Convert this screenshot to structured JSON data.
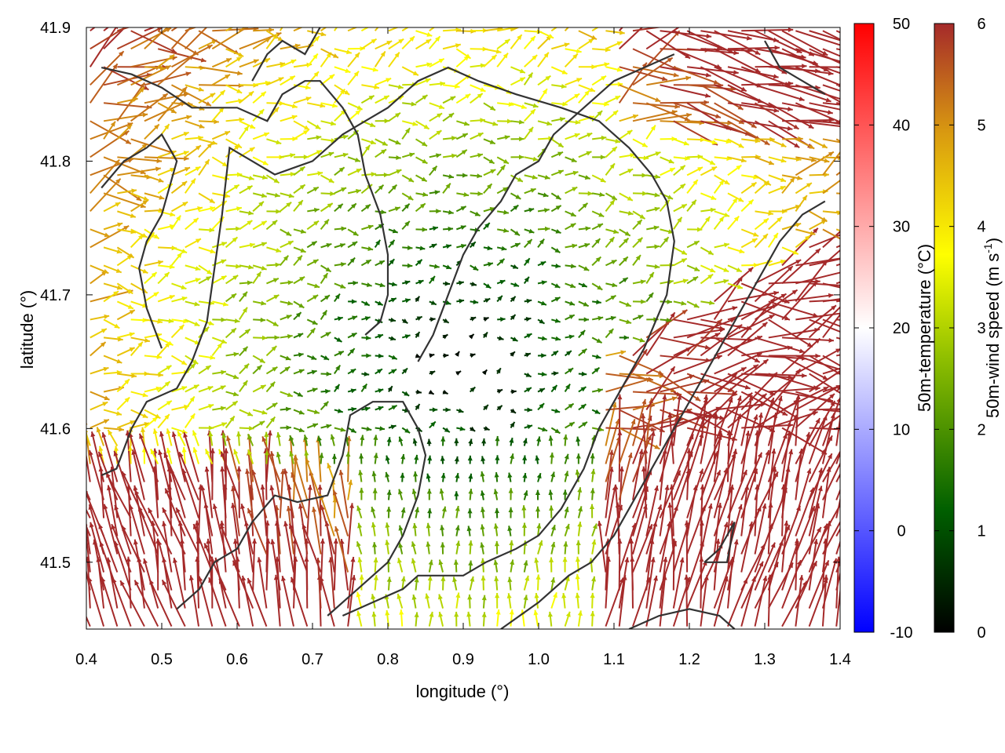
{
  "chart_data": {
    "type": "vector-field",
    "xlabel": "longitude (°)",
    "ylabel": "latitude (°)",
    "xlim": [
      0.4,
      1.4
    ],
    "ylim": [
      41.45,
      41.9
    ],
    "x_ticks": [
      "0.4",
      "0.5",
      "0.6",
      "0.7",
      "0.8",
      "0.9",
      "1.0",
      "1.1",
      "1.2",
      "1.3",
      "1.4"
    ],
    "y_ticks": [
      "41.5",
      "41.6",
      "41.7",
      "41.8",
      "41.9"
    ],
    "grid": false,
    "colorbars": [
      {
        "label": "50m-temperature (°C)",
        "range": [
          -10,
          50
        ],
        "ticks": [
          "-10",
          "0",
          "10",
          "20",
          "30",
          "40",
          "50"
        ],
        "colors": [
          "#0000ff",
          "#ffffff",
          "#ff0000"
        ]
      },
      {
        "label_main": "50m-wind speed (m s",
        "label_sup": "-1",
        "label_end": ")",
        "range": [
          0,
          6
        ],
        "ticks": [
          "0",
          "1",
          "2",
          "3",
          "4",
          "5",
          "6"
        ],
        "colors": [
          "#000000",
          "#005f00",
          "#8fbf00",
          "#ffff00",
          "#d99a10",
          "#a52a2a"
        ]
      }
    ],
    "vector_field": {
      "description": "wind arrows colored by 50m-wind speed",
      "low_speed_region_center": [
        0.9,
        41.65
      ],
      "high_speed_regions": [
        {
          "center": [
            1.3,
            41.55
          ],
          "speed": 6
        },
        {
          "center": [
            0.6,
            41.5
          ],
          "speed": 6
        }
      ]
    },
    "contours": [
      [
        [
          0.42,
          41.565
        ],
        [
          0.44,
          41.57
        ],
        [
          0.46,
          41.6
        ],
        [
          0.48,
          41.62
        ],
        [
          0.52,
          41.63
        ],
        [
          0.54,
          41.65
        ],
        [
          0.56,
          41.68
        ],
        [
          0.57,
          41.72
        ],
        [
          0.58,
          41.76
        ],
        [
          0.59,
          41.81
        ],
        [
          0.62,
          41.8
        ],
        [
          0.65,
          41.79
        ],
        [
          0.7,
          41.8
        ],
        [
          0.74,
          41.82
        ],
        [
          0.77,
          41.83
        ],
        [
          0.8,
          41.84
        ],
        [
          0.84,
          41.86
        ],
        [
          0.88,
          41.87
        ],
        [
          0.92,
          41.86
        ],
        [
          0.97,
          41.85
        ],
        [
          1.03,
          41.84
        ],
        [
          1.08,
          41.83
        ],
        [
          1.12,
          41.81
        ],
        [
          1.15,
          41.79
        ],
        [
          1.17,
          41.77
        ],
        [
          1.18,
          41.74
        ],
        [
          1.17,
          41.7
        ],
        [
          1.14,
          41.66
        ],
        [
          1.12,
          41.64
        ],
        [
          1.1,
          41.62
        ],
        [
          1.08,
          41.6
        ],
        [
          1.06,
          41.57
        ],
        [
          1.03,
          41.54
        ],
        [
          1.0,
          41.52
        ],
        [
          0.97,
          41.51
        ],
        [
          0.93,
          41.5
        ],
        [
          0.9,
          41.49
        ],
        [
          0.87,
          41.49
        ],
        [
          0.84,
          41.49
        ],
        [
          0.82,
          41.48
        ],
        [
          0.78,
          41.47
        ],
        [
          0.74,
          41.46
        ]
      ],
      [
        [
          0.52,
          41.465
        ],
        [
          0.55,
          41.48
        ],
        [
          0.57,
          41.5
        ],
        [
          0.6,
          41.51
        ],
        [
          0.62,
          41.53
        ],
        [
          0.65,
          41.55
        ],
        [
          0.68,
          41.545
        ],
        [
          0.72,
          41.55
        ],
        [
          0.74,
          41.58
        ],
        [
          0.75,
          41.61
        ],
        [
          0.78,
          41.62
        ],
        [
          0.82,
          41.62
        ],
        [
          0.84,
          41.6
        ],
        [
          0.85,
          41.58
        ],
        [
          0.84,
          41.55
        ],
        [
          0.82,
          41.52
        ],
        [
          0.8,
          41.5
        ],
        [
          0.76,
          41.48
        ],
        [
          0.72,
          41.46
        ]
      ],
      [
        [
          0.42,
          41.87
        ],
        [
          0.46,
          41.865
        ],
        [
          0.5,
          41.855
        ],
        [
          0.54,
          41.84
        ],
        [
          0.56,
          41.84
        ],
        [
          0.6,
          41.84
        ],
        [
          0.64,
          41.83
        ],
        [
          0.66,
          41.85
        ],
        [
          0.69,
          41.86
        ],
        [
          0.71,
          41.86
        ],
        [
          0.74,
          41.84
        ],
        [
          0.76,
          41.82
        ],
        [
          0.77,
          41.79
        ],
        [
          0.79,
          41.76
        ],
        [
          0.8,
          41.73
        ],
        [
          0.8,
          41.7
        ],
        [
          0.79,
          41.68
        ],
        [
          0.77,
          41.67
        ]
      ],
      [
        [
          0.84,
          41.65
        ],
        [
          0.86,
          41.67
        ],
        [
          0.88,
          41.7
        ],
        [
          0.9,
          41.73
        ],
        [
          0.92,
          41.75
        ],
        [
          0.95,
          41.77
        ],
        [
          0.97,
          41.79
        ],
        [
          1.0,
          41.8
        ],
        [
          1.02,
          41.82
        ],
        [
          1.06,
          41.84
        ],
        [
          1.1,
          41.86
        ],
        [
          1.14,
          41.87
        ],
        [
          1.18,
          41.88
        ]
      ],
      [
        [
          0.95,
          41.45
        ],
        [
          1.0,
          41.47
        ],
        [
          1.04,
          41.49
        ],
        [
          1.07,
          41.5
        ],
        [
          1.1,
          41.52
        ],
        [
          1.13,
          41.55
        ],
        [
          1.16,
          41.58
        ],
        [
          1.18,
          41.6
        ],
        [
          1.2,
          41.62
        ],
        [
          1.23,
          41.65
        ],
        [
          1.26,
          41.68
        ],
        [
          1.29,
          41.71
        ],
        [
          1.32,
          41.74
        ],
        [
          1.35,
          41.76
        ],
        [
          1.38,
          41.77
        ]
      ],
      [
        [
          1.12,
          41.45
        ],
        [
          1.16,
          41.46
        ],
        [
          1.2,
          41.465
        ],
        [
          1.24,
          41.46
        ],
        [
          1.26,
          41.45
        ]
      ],
      [
        [
          1.22,
          41.5
        ],
        [
          1.25,
          41.5
        ],
        [
          1.26,
          41.53
        ],
        [
          1.24,
          41.51
        ],
        [
          1.22,
          41.5
        ]
      ],
      [
        [
          0.42,
          41.78
        ],
        [
          0.45,
          41.8
        ],
        [
          0.48,
          41.81
        ],
        [
          0.5,
          41.82
        ],
        [
          0.52,
          41.8
        ],
        [
          0.51,
          41.78
        ],
        [
          0.5,
          41.76
        ],
        [
          0.48,
          41.74
        ],
        [
          0.47,
          41.72
        ],
        [
          0.48,
          41.69
        ],
        [
          0.5,
          41.66
        ]
      ],
      [
        [
          0.62,
          41.86
        ],
        [
          0.64,
          41.88
        ],
        [
          0.66,
          41.89
        ],
        [
          0.69,
          41.88
        ],
        [
          0.71,
          41.9
        ]
      ],
      [
        [
          1.3,
          41.89
        ],
        [
          1.32,
          41.87
        ],
        [
          1.35,
          41.86
        ],
        [
          1.38,
          41.85
        ]
      ]
    ]
  }
}
